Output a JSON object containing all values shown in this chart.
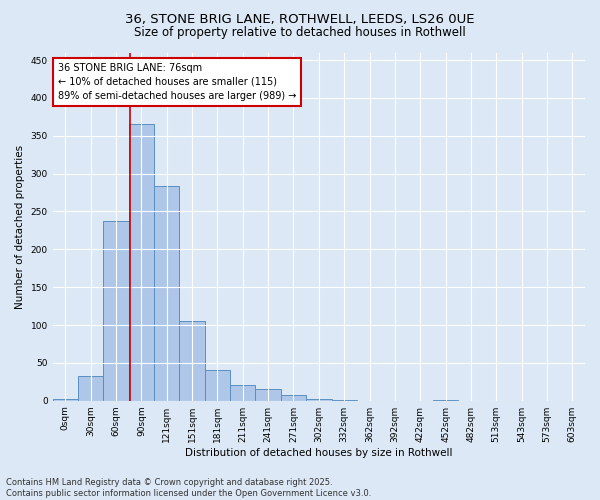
{
  "title_line1": "36, STONE BRIG LANE, ROTHWELL, LEEDS, LS26 0UE",
  "title_line2": "Size of property relative to detached houses in Rothwell",
  "xlabel": "Distribution of detached houses by size in Rothwell",
  "ylabel": "Number of detached properties",
  "bar_labels": [
    "0sqm",
    "30sqm",
    "60sqm",
    "90sqm",
    "121sqm",
    "151sqm",
    "181sqm",
    "211sqm",
    "241sqm",
    "271sqm",
    "302sqm",
    "332sqm",
    "362sqm",
    "392sqm",
    "422sqm",
    "452sqm",
    "482sqm",
    "513sqm",
    "543sqm",
    "573sqm",
    "603sqm"
  ],
  "bar_values": [
    2,
    33,
    237,
    365,
    283,
    105,
    40,
    21,
    15,
    7,
    2,
    1,
    0,
    0,
    0,
    1,
    0,
    0,
    0,
    0,
    0
  ],
  "bar_color": "#aec6e8",
  "bar_edge_color": "#5a8fc2",
  "vline_color": "#cc0000",
  "annotation_text": "36 STONE BRIG LANE: 76sqm\n← 10% of detached houses are smaller (115)\n89% of semi-detached houses are larger (989) →",
  "annotation_box_color": "#ffffff",
  "annotation_box_edge": "#cc0000",
  "ylim": [
    0,
    460
  ],
  "yticks": [
    0,
    50,
    100,
    150,
    200,
    250,
    300,
    350,
    400,
    450
  ],
  "background_color": "#dce8f5",
  "grid_color": "#ffffff",
  "footer_line1": "Contains HM Land Registry data © Crown copyright and database right 2025.",
  "footer_line2": "Contains public sector information licensed under the Open Government Licence v3.0.",
  "title_fontsize": 9.5,
  "subtitle_fontsize": 8.5,
  "axis_label_fontsize": 7.5,
  "tick_fontsize": 6.5,
  "annotation_fontsize": 7,
  "footer_fontsize": 6
}
